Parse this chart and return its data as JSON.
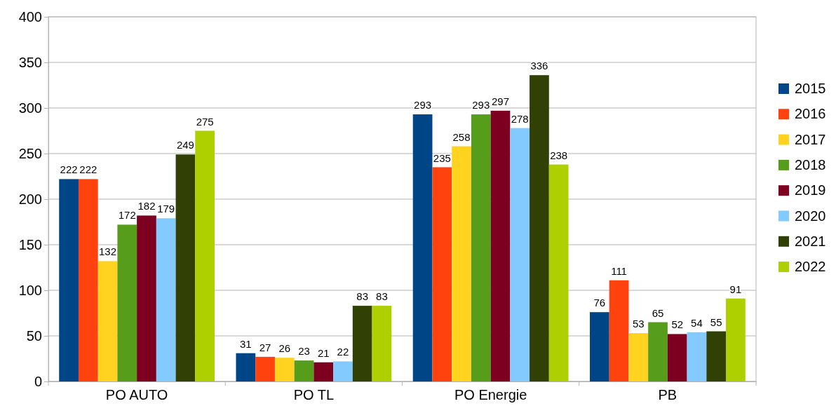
{
  "chart_data": {
    "type": "bar",
    "categories": [
      "PO AUTO",
      "PO TL",
      "PO Energie",
      "PB"
    ],
    "series": [
      {
        "name": "2015",
        "color": "#004586",
        "values": [
          222,
          31,
          293,
          76
        ]
      },
      {
        "name": "2016",
        "color": "#ff420e",
        "values": [
          222,
          27,
          235,
          111
        ]
      },
      {
        "name": "2017",
        "color": "#ffd320",
        "values": [
          132,
          26,
          258,
          53
        ]
      },
      {
        "name": "2018",
        "color": "#579d1c",
        "values": [
          172,
          23,
          293,
          65
        ]
      },
      {
        "name": "2019",
        "color": "#7e0021",
        "values": [
          182,
          21,
          297,
          52
        ]
      },
      {
        "name": "2020",
        "color": "#83caff",
        "values": [
          179,
          22,
          278,
          54
        ]
      },
      {
        "name": "2021",
        "color": "#314004",
        "values": [
          249,
          83,
          336,
          55
        ]
      },
      {
        "name": "2022",
        "color": "#aecf00",
        "values": [
          275,
          83,
          238,
          91
        ]
      }
    ],
    "ylim": [
      0,
      400
    ],
    "yticks": [
      0,
      50,
      100,
      150,
      200,
      250,
      300,
      350,
      400
    ],
    "grid": "y",
    "legend": "right",
    "data_labels": true
  }
}
